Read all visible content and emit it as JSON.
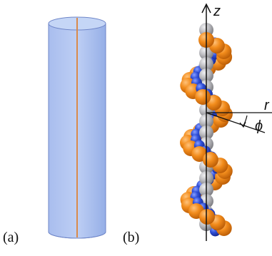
{
  "panels": {
    "a": {
      "label": "(a)"
    },
    "b": {
      "label": "(b)"
    }
  },
  "axes": {
    "z": "z",
    "r": "r",
    "phi": "ϕ"
  },
  "colors": {
    "cylinder_top": "#b9cdf3",
    "cylinder_bottom": "#7f9ee2",
    "cylinder_edge": "#6f86c8",
    "cylinder_axis": "#d98a4a",
    "core_sphere": "#b8b8bc",
    "strand_blue": "#2f4fd8",
    "strand_orange": "#f08a18"
  },
  "helix": {
    "turns": 3.2,
    "spheres_per_strand": 34
  }
}
